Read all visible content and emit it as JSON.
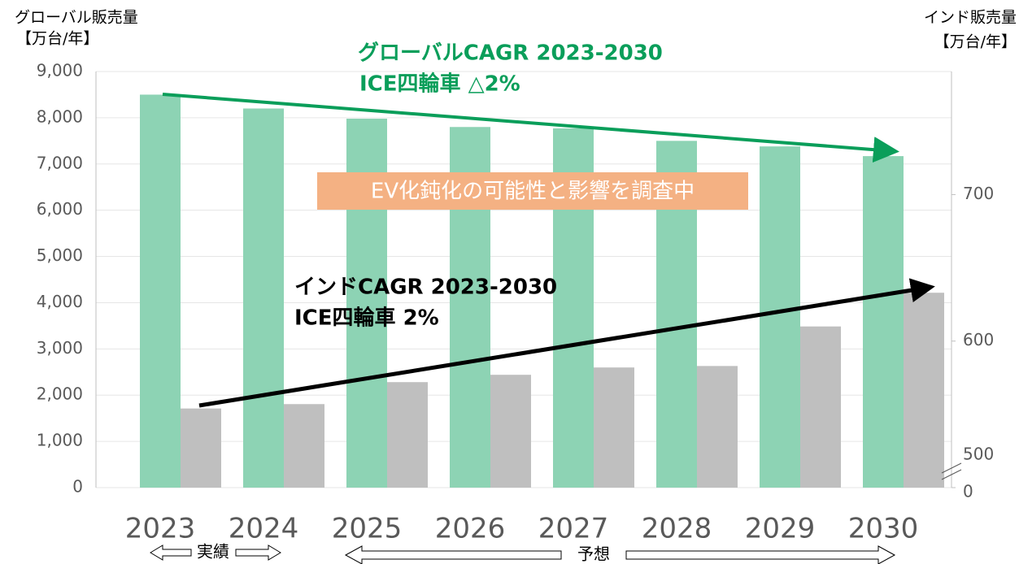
{
  "chart_data": {
    "type": "bar",
    "left_axis_title": [
      "グローバル販売量",
      "【万台/年】"
    ],
    "right_axis_title": [
      "インド販売量",
      "【万台/年】"
    ],
    "categories": [
      "2023",
      "2024",
      "2025",
      "2026",
      "2027",
      "2028",
      "2029",
      "2030"
    ],
    "series": [
      {
        "name": "グローバル",
        "color": "#8dd3b4",
        "values": [
          8500,
          8200,
          7980,
          7800,
          7770,
          7500,
          7380,
          7170
        ]
      },
      {
        "name": "インド",
        "color": "#bfbfbf",
        "axis": "y2",
        "values": [
          554,
          557,
          572,
          577,
          582,
          583,
          610,
          633
        ]
      }
    ],
    "ylim": [
      0,
      9000
    ],
    "yticks": [
      0,
      {
        "value": 1000,
        "label": "1,000"
      },
      {
        "value": 2000,
        "label": "2,000"
      },
      {
        "value": 3000,
        "label": "3,000"
      },
      {
        "value": 4000,
        "label": "4,000"
      },
      {
        "value": 5000,
        "label": "5,000"
      },
      {
        "value": 6000,
        "label": "6,000"
      },
      {
        "value": 7000,
        "label": "7,000"
      },
      {
        "value": 8000,
        "label": "8,000"
      },
      {
        "value": 9000,
        "label": "9,000"
      }
    ],
    "y2lim": [
      500,
      784
    ],
    "y2ticks": [
      500,
      600,
      700
    ],
    "y2_break_label": "0",
    "grid": true,
    "annotations": {
      "global_cagr": [
        "グローバルCAGR 2023-2030",
        "ICE四輪車 △2%"
      ],
      "india_cagr": [
        "インドCAGR 2023-2030",
        "ICE四輪車 2%"
      ],
      "note": "EV化鈍化の可能性と影響を調査中",
      "actual": "実績",
      "forecast": "予想"
    }
  }
}
